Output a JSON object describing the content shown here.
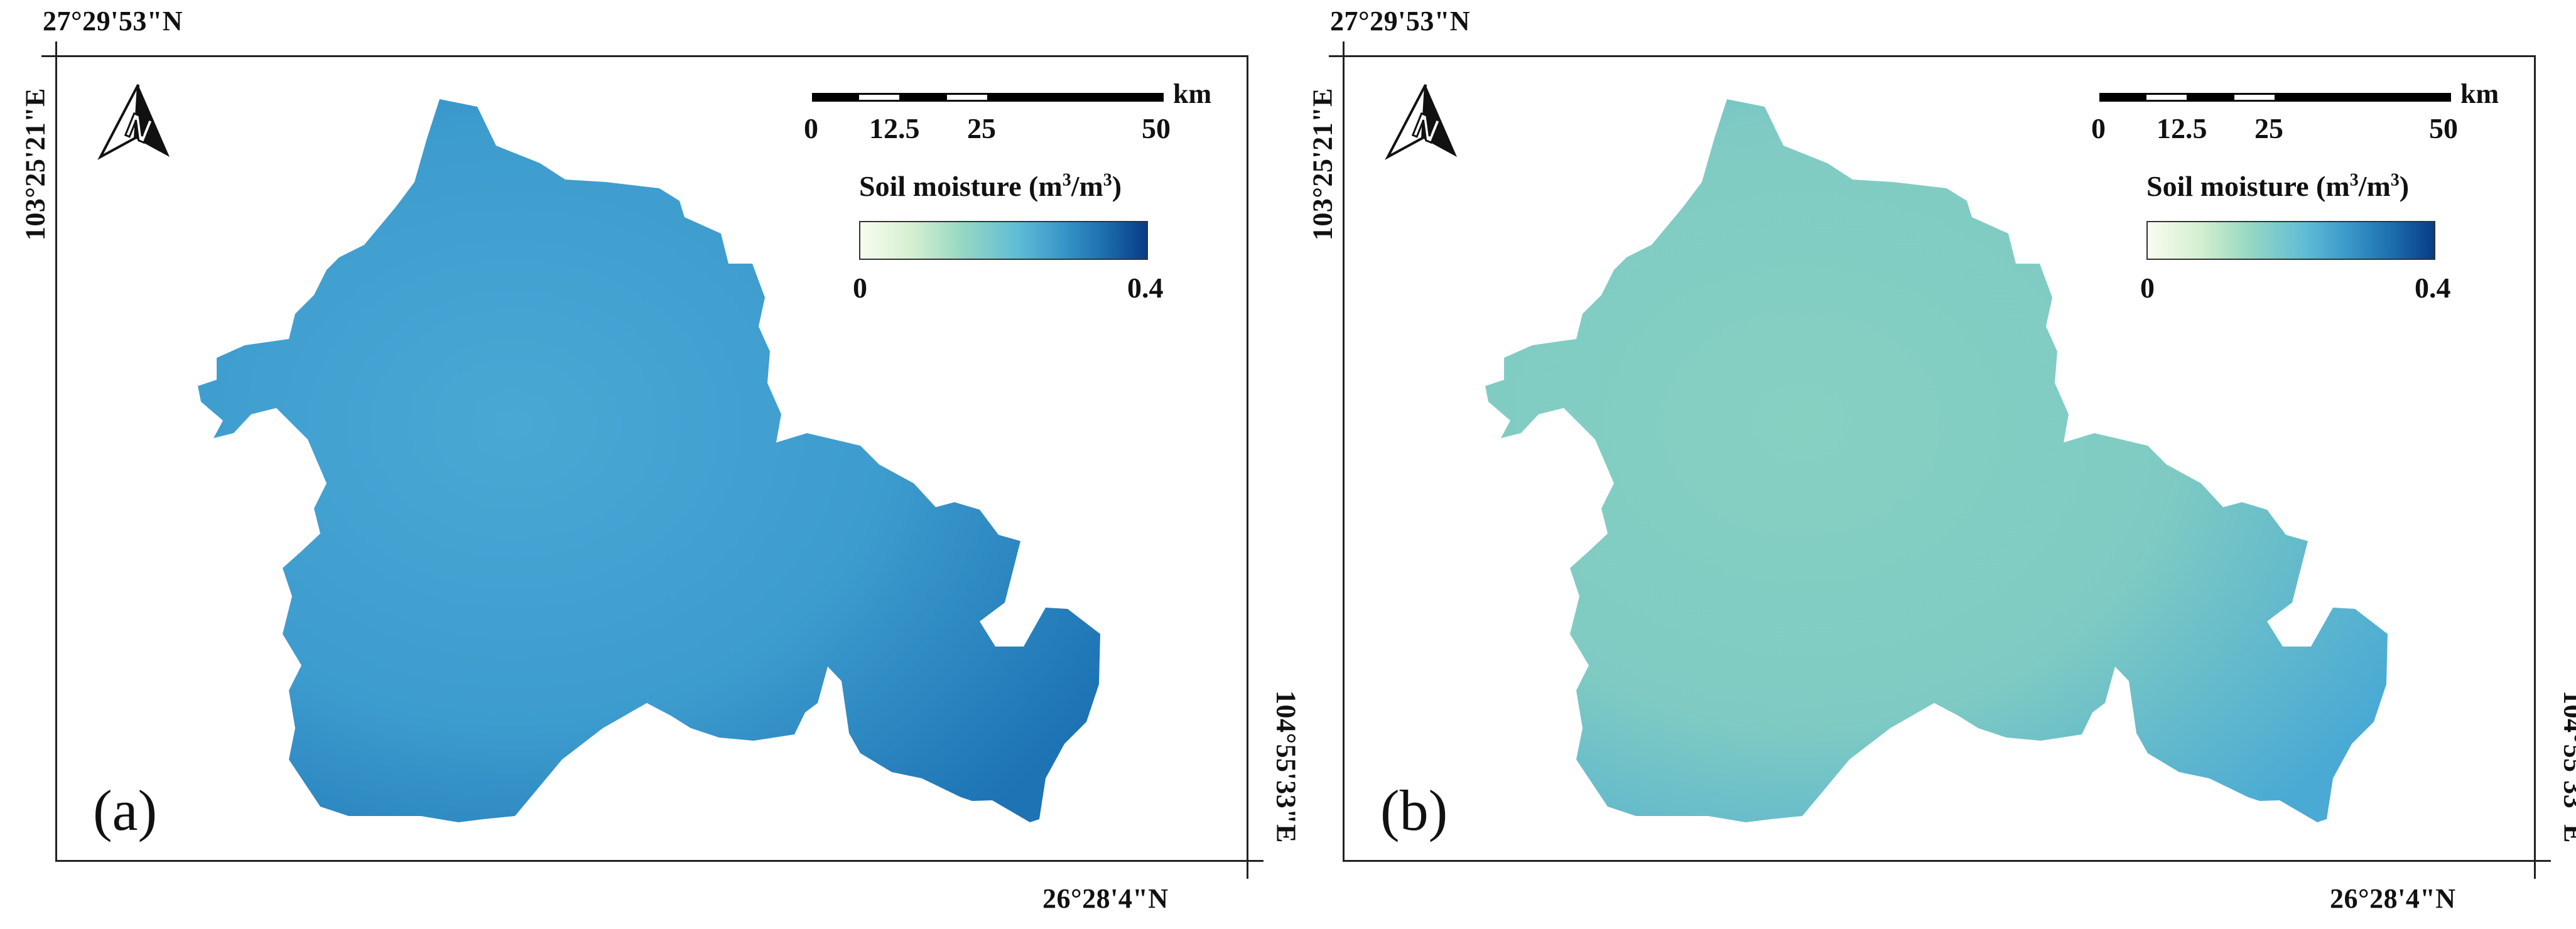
{
  "panels": [
    {
      "id": "a",
      "label": "(a)",
      "fill_main": "#3d9cce",
      "fill_light": "#4aa8d4",
      "fill_dark": "#1d73b4"
    },
    {
      "id": "b",
      "label": "(b)",
      "fill_main": "#7fcbc3",
      "fill_light": "#86d0c2",
      "fill_dark": "#4aaad4"
    }
  ],
  "coords": {
    "top_lat": "27°29'53\"N",
    "left_lon": "103°25'21\"E",
    "bottom_lat": "26°28'4\"N",
    "right_lon": "104°55'33\"E"
  },
  "north_arrow": {
    "icon": "north-arrow-icon",
    "letter": "N"
  },
  "scale_bar": {
    "ticks": [
      "0",
      "12.5",
      "25",
      "50"
    ],
    "unit": "km"
  },
  "legend": {
    "title": "Soil moisture (m",
    "title_sup1": "3",
    "title_mid": "/m",
    "title_sup2": "3",
    "title_end": ")",
    "min": "0",
    "max": "0.4",
    "colors": [
      "#f7fcf0",
      "#98d8c3",
      "#3a98c9",
      "#083c87"
    ]
  }
}
